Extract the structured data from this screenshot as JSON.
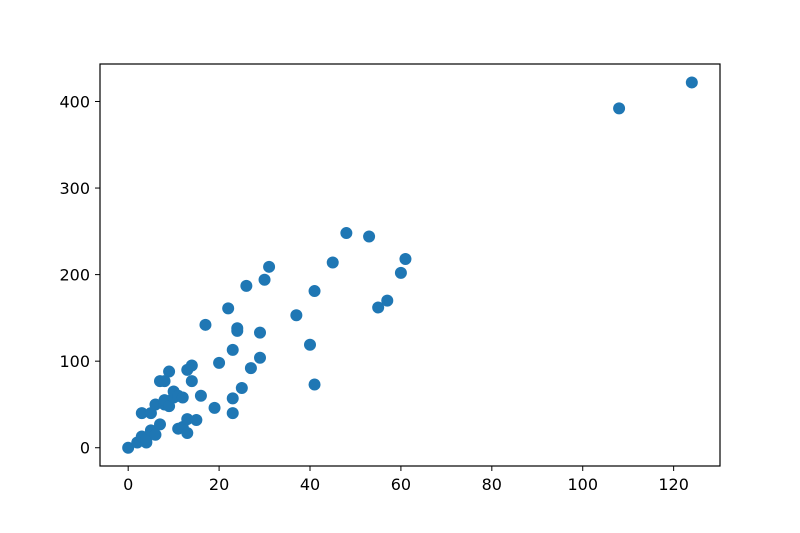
{
  "chart_data": {
    "type": "scatter",
    "title": "",
    "xlabel": "",
    "ylabel": "",
    "xlim": [
      -6.2,
      130.2
    ],
    "ylim": [
      -21.1,
      443.3
    ],
    "x_ticks": [
      0,
      20,
      40,
      60,
      80,
      100,
      120
    ],
    "y_ticks": [
      0,
      100,
      200,
      300,
      400
    ],
    "grid": false,
    "marker_color": "#1f77b4",
    "series": [
      {
        "points": [
          [
            0,
            0
          ],
          [
            2,
            6
          ],
          [
            3,
            13
          ],
          [
            3,
            40
          ],
          [
            4,
            6
          ],
          [
            4,
            10
          ],
          [
            5,
            20
          ],
          [
            5,
            40
          ],
          [
            6,
            15
          ],
          [
            6,
            50
          ],
          [
            7,
            27
          ],
          [
            7,
            77
          ],
          [
            8,
            50
          ],
          [
            8,
            55
          ],
          [
            8,
            77
          ],
          [
            9,
            48
          ],
          [
            9,
            88
          ],
          [
            10,
            58
          ],
          [
            10,
            65
          ],
          [
            11,
            22
          ],
          [
            11,
            60
          ],
          [
            12,
            24
          ],
          [
            12,
            58
          ],
          [
            13,
            17
          ],
          [
            13,
            33
          ],
          [
            13,
            90
          ],
          [
            14,
            77
          ],
          [
            14,
            95
          ],
          [
            15,
            32
          ],
          [
            16,
            60
          ],
          [
            17,
            142
          ],
          [
            19,
            46
          ],
          [
            20,
            98
          ],
          [
            22,
            161
          ],
          [
            23,
            40
          ],
          [
            23,
            57
          ],
          [
            23,
            113
          ],
          [
            24,
            135
          ],
          [
            24,
            138
          ],
          [
            25,
            69
          ],
          [
            26,
            187
          ],
          [
            27,
            92
          ],
          [
            29,
            104
          ],
          [
            29,
            133
          ],
          [
            30,
            194
          ],
          [
            31,
            209
          ],
          [
            37,
            153
          ],
          [
            40,
            119
          ],
          [
            41,
            73
          ],
          [
            41,
            181
          ],
          [
            45,
            214
          ],
          [
            48,
            248
          ],
          [
            53,
            244
          ],
          [
            55,
            162
          ],
          [
            57,
            170
          ],
          [
            60,
            202
          ],
          [
            61,
            218
          ],
          [
            108,
            392
          ],
          [
            124,
            422
          ]
        ]
      }
    ]
  }
}
